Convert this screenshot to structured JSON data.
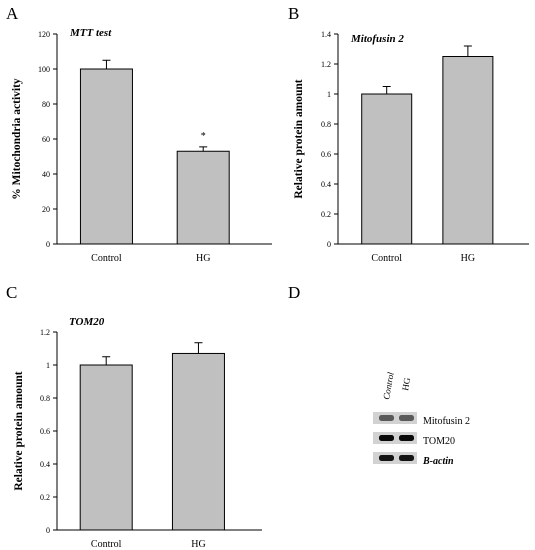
{
  "panels": [
    {
      "letter": "A"
    },
    {
      "letter": "B"
    },
    {
      "letter": "C"
    },
    {
      "letter": "D"
    }
  ],
  "chart_data": [
    {
      "type": "bar",
      "title": "MTT test",
      "xlabel": "",
      "ylabel": "% Mitochondria activity",
      "categories": [
        "Control",
        "HG"
      ],
      "values": [
        100,
        53
      ],
      "error": [
        5,
        2.5
      ],
      "annotations": [
        "",
        "*"
      ],
      "ylim": [
        0,
        120
      ],
      "yticks": [
        0,
        20,
        40,
        60,
        80,
        100,
        120
      ],
      "ytick_labels": [
        "0",
        "20",
        "40",
        "60",
        "80",
        "100",
        "120"
      ],
      "grid": false,
      "bar_color": "#c0c0c0"
    },
    {
      "type": "bar",
      "title": "Mitofusin 2",
      "xlabel": "",
      "ylabel": "Relative protein amount",
      "categories": [
        "Control",
        "HG"
      ],
      "values": [
        1.0,
        1.25
      ],
      "error": [
        0.05,
        0.07
      ],
      "annotations": [
        "",
        ""
      ],
      "ylim": [
        0,
        1.4
      ],
      "yticks": [
        0,
        0.2,
        0.4,
        0.6,
        0.8,
        1,
        1.2,
        1.4
      ],
      "ytick_labels": [
        "0",
        "0.2",
        "0.4",
        "0.6",
        "0.8",
        "1",
        "1.2",
        "1.4"
      ],
      "grid": false,
      "bar_color": "#c0c0c0"
    },
    {
      "type": "bar",
      "title": "TOM20",
      "xlabel": "",
      "ylabel": "Relative protein amount",
      "categories": [
        "Control",
        "HG"
      ],
      "values": [
        1.0,
        1.07
      ],
      "error": [
        0.05,
        0.065
      ],
      "annotations": [
        "",
        ""
      ],
      "ylim": [
        0,
        1.2
      ],
      "yticks": [
        0,
        0.2,
        0.4,
        0.6,
        0.8,
        1,
        1.2
      ],
      "ytick_labels": [
        "0",
        "0.2",
        "0.4",
        "0.6",
        "0.8",
        "1",
        "1.2"
      ],
      "grid": false,
      "bar_color": "#c0c0c0"
    }
  ],
  "blot": {
    "lanes": [
      "Control",
      "HG"
    ],
    "bands": [
      {
        "label": "Mitofusin 2",
        "emphasis": false,
        "intensity": 0.55
      },
      {
        "label": "TOM20",
        "emphasis": false,
        "intensity": 0.95
      },
      {
        "label": "B-actin",
        "emphasis": true,
        "intensity": 0.9
      }
    ]
  }
}
